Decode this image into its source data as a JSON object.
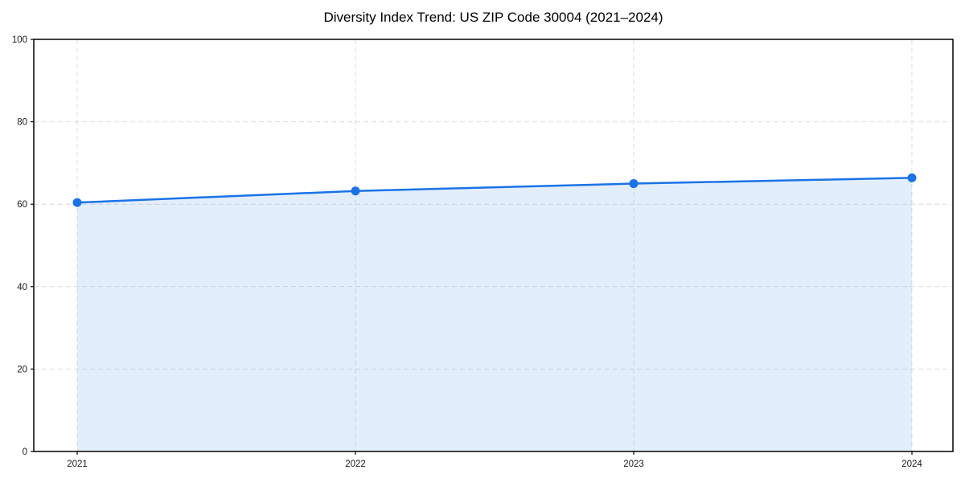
{
  "page": {
    "background": "#ffffff"
  },
  "chart_data": {
    "type": "area",
    "title": "Diversity Index Trend: US ZIP Code 30004 (2021–2024)",
    "x": [
      "2021",
      "2022",
      "2023",
      "2024"
    ],
    "series": [
      {
        "name": "Diversity Index",
        "values": [
          60.4,
          63.2,
          65.0,
          66.4
        ]
      }
    ],
    "xlabel": "",
    "ylabel": "",
    "ylim": [
      0,
      100
    ],
    "yticks": [
      0,
      20,
      40,
      60,
      80,
      100
    ],
    "grid": "dashed",
    "legend": "none",
    "colors": {
      "line": "#1a73e8",
      "marker": "#1a73e8",
      "fill": "rgba(26,115,232,0.12)",
      "gridline": "#dcdcdc",
      "spine": "#000000",
      "tick_label": "#1a1a1a",
      "title": "#000000"
    }
  }
}
